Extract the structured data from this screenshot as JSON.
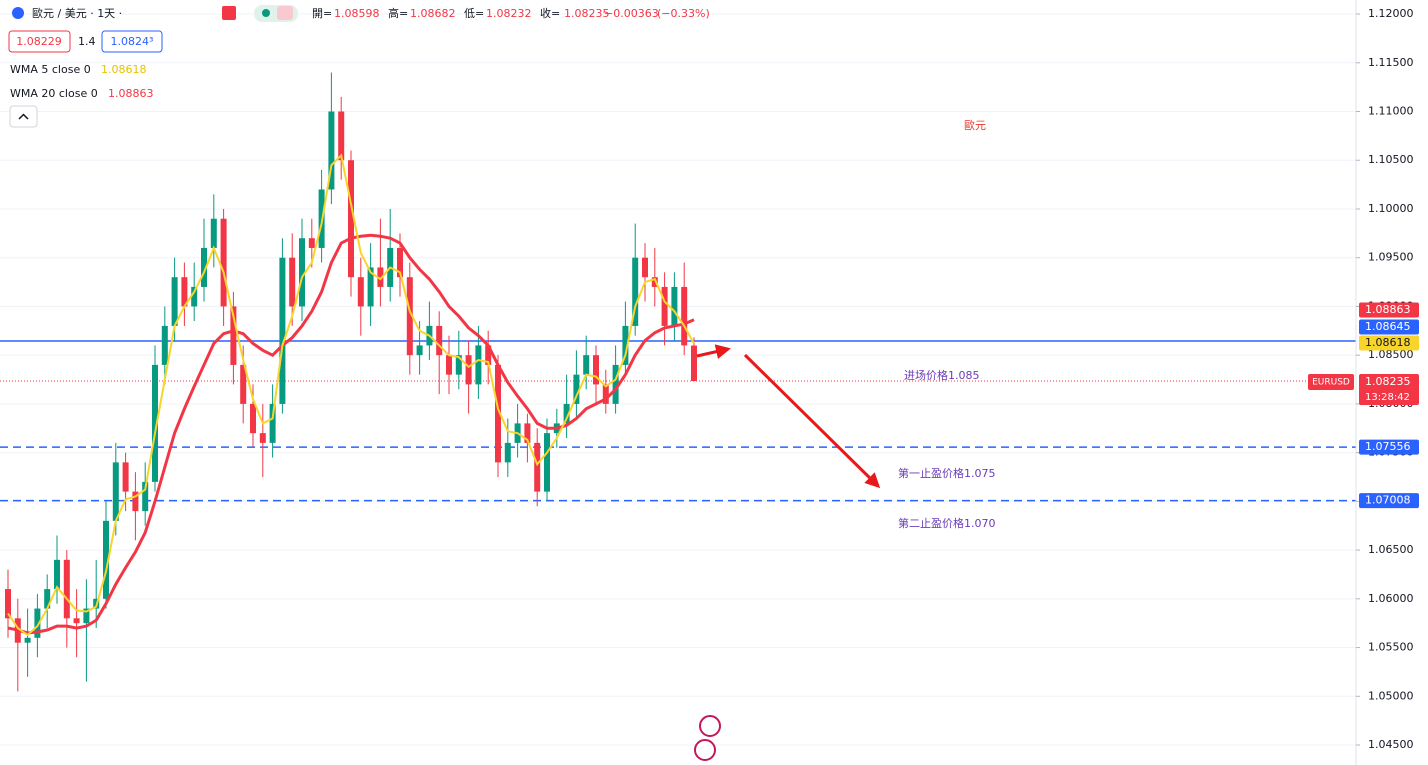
{
  "chart_data": {
    "type": "candlestick",
    "symbol": "歐元 / 美元 · 1天 ·",
    "ohlc_labels": [
      "開=",
      "高=",
      "低=",
      "收="
    ],
    "change": {
      "value": -0.00363,
      "label": "−0.00363"
    },
    "change_pct": {
      "value": -0.33,
      "label": "(−0.33%)"
    },
    "bid": {
      "value": 1.08229,
      "label": "1.08229"
    },
    "spread": 1.4,
    "ask": {
      "value": 1.08243,
      "label": "1.0824³"
    },
    "ticker": "EURUSD",
    "countdown": "13:28:42",
    "annotations": [
      {
        "text": "歐元",
        "color": "#e8352b"
      },
      {
        "text": "进场价格1.085",
        "color": "#6a3cb8"
      },
      {
        "text": "第一止盈价格1.075",
        "color": "#6a3cb8"
      },
      {
        "text": "第二止盈价格1.070",
        "color": "#6a3cb8"
      }
    ],
    "ylim": [
      1.04295,
      1.12144
    ],
    "yticks": [
      {
        "value": 1.12,
        "label": "1.12000"
      },
      {
        "value": 1.115,
        "label": "1.11500"
      },
      {
        "value": 1.11,
        "label": "1.11000"
      },
      {
        "value": 1.105,
        "label": "1.10500"
      },
      {
        "value": 1.1,
        "label": "1.10000"
      },
      {
        "value": 1.095,
        "label": "1.09500"
      },
      {
        "value": 1.09,
        "label": "1.09000"
      },
      {
        "value": 1.085,
        "label": "1.08500"
      },
      {
        "value": 1.08,
        "label": "1.08000"
      },
      {
        "value": 1.075,
        "label": "1.07500"
      },
      {
        "value": 1.07,
        "label": "1.07000"
      },
      {
        "value": 1.065,
        "label": "1.06500"
      },
      {
        "value": 1.06,
        "label": "1.06000"
      },
      {
        "value": 1.055,
        "label": "1.05500"
      },
      {
        "value": 1.05,
        "label": "1.05000"
      },
      {
        "value": 1.045,
        "label": "1.04500"
      }
    ],
    "grid": true,
    "up_color": "#089981",
    "down_color": "#f23645",
    "open": [
      1.061,
      1.058,
      1.0555,
      1.056,
      1.059,
      1.061,
      1.064,
      1.058,
      1.0575,
      1.059,
      1.06,
      1.068,
      1.074,
      1.071,
      1.069,
      1.072,
      1.084,
      1.088,
      1.093,
      1.09,
      1.092,
      1.096,
      1.099,
      1.09,
      1.084,
      1.08,
      1.077,
      1.076,
      1.08,
      1.095,
      1.09,
      1.097,
      1.096,
      1.102,
      1.11,
      1.105,
      1.093,
      1.09,
      1.094,
      1.092,
      1.096,
      1.093,
      1.085,
      1.086,
      1.088,
      1.085,
      1.083,
      1.085,
      1.082,
      1.086,
      1.084,
      1.074,
      1.076,
      1.078,
      1.076,
      1.071,
      1.077,
      1.078,
      1.08,
      1.083,
      1.085,
      1.082,
      1.08,
      1.084,
      1.088,
      1.095,
      1.093,
      1.092,
      1.088,
      1.092,
      1.08598
    ],
    "high": [
      1.063,
      1.06,
      1.059,
      1.0605,
      1.0625,
      1.0665,
      1.065,
      1.061,
      1.062,
      1.064,
      1.07,
      1.076,
      1.075,
      1.073,
      1.074,
      1.086,
      1.09,
      1.095,
      1.0945,
      1.0945,
      1.099,
      1.1015,
      1.1,
      1.0915,
      1.086,
      1.082,
      1.08,
      1.082,
      1.097,
      1.0975,
      1.099,
      1.099,
      1.104,
      1.114,
      1.1115,
      1.106,
      1.095,
      1.0965,
      1.099,
      1.1,
      1.0975,
      1.0945,
      1.0885,
      1.0905,
      1.0895,
      1.087,
      1.0875,
      1.0865,
      1.088,
      1.0875,
      1.085,
      1.0785,
      1.08,
      1.079,
      1.0775,
      1.0785,
      1.0795,
      1.083,
      1.0855,
      1.087,
      1.086,
      1.0835,
      1.086,
      1.0905,
      1.0985,
      1.0965,
      1.096,
      1.0935,
      1.0935,
      1.0945,
      1.08682
    ],
    "low": [
      1.056,
      1.0505,
      1.052,
      1.054,
      1.057,
      1.0595,
      1.055,
      1.054,
      1.0515,
      1.057,
      1.059,
      1.0665,
      1.069,
      1.066,
      1.0675,
      1.071,
      1.082,
      1.0865,
      1.088,
      1.0885,
      1.0905,
      1.094,
      1.088,
      1.082,
      1.078,
      1.0755,
      1.0725,
      1.0745,
      1.079,
      1.088,
      1.0885,
      1.094,
      1.0945,
      1.1005,
      1.103,
      1.091,
      1.087,
      1.088,
      1.09,
      1.0905,
      1.091,
      1.083,
      1.083,
      1.0845,
      1.081,
      1.081,
      1.0815,
      1.079,
      1.0805,
      1.082,
      1.0725,
      1.0725,
      1.0745,
      1.074,
      1.0695,
      1.07,
      1.0755,
      1.0765,
      1.0785,
      1.0815,
      1.08,
      1.079,
      1.079,
      1.083,
      1.087,
      1.0905,
      1.09,
      1.086,
      1.0865,
      1.085,
      1.08232
    ],
    "close": [
      1.058,
      1.0555,
      1.056,
      1.059,
      1.061,
      1.064,
      1.058,
      1.0575,
      1.059,
      1.06,
      1.068,
      1.074,
      1.071,
      1.069,
      1.072,
      1.084,
      1.088,
      1.093,
      1.09,
      1.092,
      1.096,
      1.099,
      1.09,
      1.084,
      1.08,
      1.077,
      1.076,
      1.08,
      1.095,
      1.09,
      1.097,
      1.096,
      1.102,
      1.11,
      1.105,
      1.093,
      1.09,
      1.094,
      1.092,
      1.096,
      1.093,
      1.085,
      1.086,
      1.088,
      1.085,
      1.083,
      1.085,
      1.082,
      1.086,
      1.084,
      1.074,
      1.076,
      1.078,
      1.076,
      1.071,
      1.077,
      1.078,
      1.08,
      1.083,
      1.085,
      1.082,
      1.08,
      1.084,
      1.088,
      1.095,
      1.093,
      1.092,
      1.088,
      1.092,
      1.086,
      1.08235
    ],
    "series": [
      {
        "name": "WMA 5 close 0",
        "color": "#f7d52a",
        "values": [
          1.0585,
          1.057,
          1.0563,
          1.0572,
          1.059,
          1.0612,
          1.06,
          1.0588,
          1.0587,
          1.0592,
          1.0628,
          1.068,
          1.0702,
          1.0705,
          1.0712,
          1.077,
          1.0825,
          1.088,
          1.09,
          1.0915,
          1.0935,
          1.096,
          1.0935,
          1.089,
          1.0845,
          1.0805,
          1.078,
          1.0785,
          1.086,
          1.089,
          1.093,
          1.0945,
          1.0985,
          1.1045,
          1.1055,
          1.1005,
          1.0955,
          1.0935,
          1.0928,
          1.094,
          1.0935,
          1.0895,
          1.0875,
          1.087,
          1.086,
          1.085,
          1.0848,
          1.0838,
          1.0845,
          1.0843,
          1.0795,
          1.0772,
          1.077,
          1.0763,
          1.0738,
          1.075,
          1.0765,
          1.0785,
          1.0808,
          1.083,
          1.0828,
          1.0818,
          1.0825,
          1.085,
          1.09,
          1.0925,
          1.0928,
          1.0905,
          1.0895,
          1.088,
          1.08618
        ]
      },
      {
        "name": "WMA 20 close 0",
        "color": "#f23645",
        "values": [
          1.057,
          1.0568,
          1.0565,
          1.0566,
          1.0568,
          1.0572,
          1.0572,
          1.057,
          1.0572,
          1.0578,
          1.0595,
          1.0615,
          1.0632,
          1.0648,
          1.0668,
          1.07,
          1.0735,
          1.077,
          1.0795,
          1.0818,
          1.084,
          1.0862,
          1.0872,
          1.0875,
          1.0872,
          1.0862,
          1.0855,
          1.085,
          1.086,
          1.0868,
          1.088,
          1.0895,
          1.0915,
          1.0945,
          1.0965,
          1.097,
          1.0972,
          1.0973,
          1.0972,
          1.097,
          1.0965,
          1.095,
          1.0938,
          1.0928,
          1.0915,
          1.09,
          1.089,
          1.0878,
          1.087,
          1.086,
          1.084,
          1.0822,
          1.0808,
          1.0795,
          1.078,
          1.0775,
          1.0775,
          1.0778,
          1.0785,
          1.0795,
          1.08,
          1.0805,
          1.0815,
          1.083,
          1.085,
          1.0865,
          1.0873,
          1.0878,
          1.088,
          1.0882,
          1.08863
        ]
      }
    ],
    "hlines": [
      {
        "value": 1.08645,
        "color": "#2962ff",
        "style": "solid"
      },
      {
        "value": 1.07556,
        "color": "#2962ff",
        "style": "dashed"
      },
      {
        "value": 1.07008,
        "color": "#2962ff",
        "style": "dashed"
      }
    ]
  }
}
